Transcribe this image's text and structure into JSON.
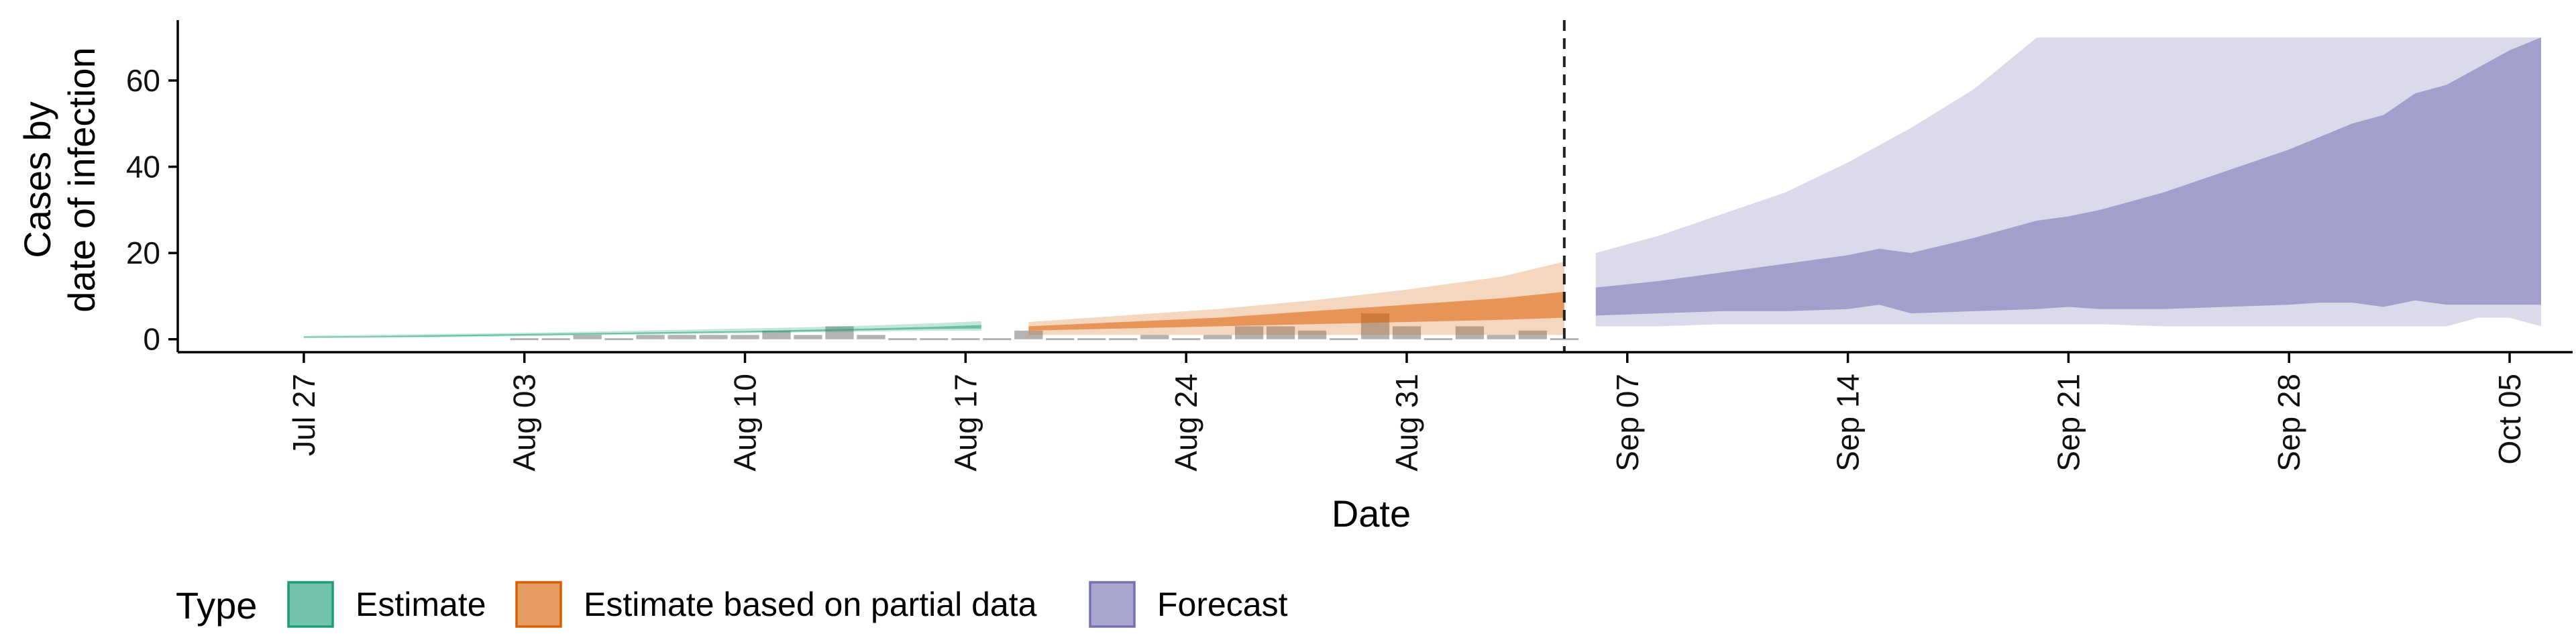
{
  "chart_data": {
    "type": "area",
    "xlabel": "Date",
    "ylabel_lines": [
      "Cases by",
      "date of infection"
    ],
    "x_domain_days": [
      -4,
      72
    ],
    "ylim": [
      -3,
      74
    ],
    "y_ticks": [
      0,
      20,
      40,
      60
    ],
    "x_ticks": [
      "Jul 27",
      "Aug 03",
      "Aug 10",
      "Aug 17",
      "Aug 24",
      "Aug 31",
      "Sep 07",
      "Sep 14",
      "Sep 21",
      "Sep 28",
      "Oct 05"
    ],
    "x_tick_days": [
      0,
      7,
      14,
      21,
      28,
      35,
      42,
      49,
      56,
      63,
      70
    ],
    "reference_line_day": 40,
    "legend": {
      "title": "Type",
      "items": [
        {
          "label": "Estimate",
          "color": "#1b9e77"
        },
        {
          "label": "Estimate based on partial data",
          "color": "#d95f02"
        },
        {
          "label": "Forecast",
          "color": "#7570b3"
        }
      ]
    },
    "bars": {
      "days": [
        7,
        8,
        9,
        10,
        11,
        12,
        13,
        14,
        15,
        16,
        17,
        18,
        19,
        20,
        21,
        22,
        23,
        24,
        25,
        26,
        27,
        28,
        29,
        30,
        31,
        32,
        33,
        34,
        35,
        36,
        37,
        38,
        39,
        40
      ],
      "values": [
        0,
        0,
        1,
        0,
        1,
        1,
        1,
        1,
        2,
        1,
        3,
        1,
        0,
        0,
        0,
        0,
        2,
        0,
        0,
        0,
        1,
        0,
        1,
        3,
        3,
        2,
        0,
        6,
        3,
        0,
        3,
        1,
        2,
        0
      ],
      "color": "#b3b3b3"
    },
    "series": [
      {
        "name": "Estimate",
        "color": "#1b9e77",
        "days": [
          0,
          2,
          4,
          6,
          8,
          10,
          12,
          14,
          16,
          18,
          20,
          21.5
        ],
        "outer_low": [
          0.2,
          0.3,
          0.4,
          0.6,
          0.8,
          1.0,
          1.2,
          1.4,
          1.6,
          1.8,
          2.0,
          2.0
        ],
        "outer_high": [
          0.8,
          1.0,
          1.2,
          1.4,
          1.6,
          1.9,
          2.2,
          2.5,
          2.8,
          3.2,
          3.7,
          4.2
        ],
        "inner_low": [
          0.4,
          0.5,
          0.6,
          0.8,
          1.0,
          1.2,
          1.4,
          1.6,
          1.8,
          2.1,
          2.4,
          2.5
        ],
        "inner_high": [
          0.6,
          0.7,
          0.9,
          1.1,
          1.3,
          1.5,
          1.7,
          1.9,
          2.2,
          2.5,
          2.9,
          3.3
        ]
      },
      {
        "name": "Estimate based on partial data",
        "color": "#d95f02",
        "days": [
          23,
          26,
          29,
          32,
          35,
          38,
          40
        ],
        "outer_low": [
          1.0,
          1.0,
          1.0,
          1.0,
          1.0,
          1.0,
          1.0
        ],
        "outer_high": [
          4.0,
          5.5,
          7.0,
          9.0,
          11.5,
          14.5,
          18.0
        ],
        "inner_low": [
          2.0,
          2.5,
          3.0,
          3.5,
          4.0,
          4.5,
          5.0
        ],
        "inner_high": [
          3.0,
          4.0,
          5.0,
          6.5,
          8.0,
          9.5,
          11.0
        ]
      },
      {
        "name": "Forecast",
        "color": "#7570b3",
        "days": [
          41,
          43,
          45,
          47,
          49,
          50,
          51,
          53,
          55,
          56,
          57,
          59,
          61,
          63,
          64,
          65,
          66,
          67,
          68,
          69,
          70,
          71
        ],
        "outer_low": [
          3,
          3,
          3.5,
          3.5,
          3.5,
          3.5,
          3.5,
          3.5,
          3.5,
          3.5,
          3.5,
          3,
          3,
          3,
          3,
          3,
          3,
          3,
          3,
          5,
          5,
          3
        ],
        "outer_high": [
          20,
          24,
          29,
          34,
          41,
          45,
          49,
          58,
          70,
          70,
          70,
          70,
          70,
          70,
          70,
          70,
          70,
          70,
          70,
          70,
          70,
          70
        ],
        "inner_low": [
          5.5,
          6,
          6.5,
          6.5,
          7,
          8,
          6,
          6.5,
          7,
          7.5,
          7,
          7,
          7.5,
          8,
          8.5,
          8.5,
          7.5,
          9,
          8,
          8,
          8,
          8
        ],
        "inner_high": [
          12,
          13.5,
          15.5,
          17.5,
          19.5,
          21,
          20,
          23.5,
          27.5,
          28.5,
          30,
          34,
          39,
          44,
          47,
          50,
          52,
          57,
          59,
          63,
          67,
          70
        ]
      }
    ]
  }
}
